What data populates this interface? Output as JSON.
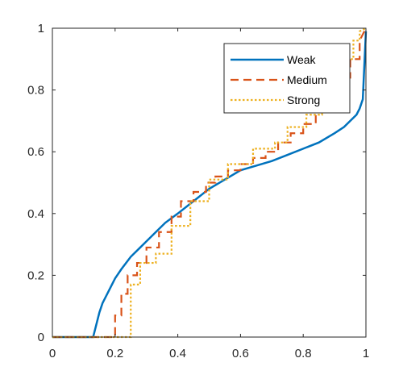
{
  "chart_data": {
    "type": "line",
    "xlim": [
      0,
      1
    ],
    "ylim": [
      0,
      1
    ],
    "xticks": [
      "0",
      "0.2",
      "0.4",
      "0.6",
      "0.8",
      "1"
    ],
    "yticks": [
      "0",
      "0.2",
      "0.4",
      "0.6",
      "0.8",
      "1"
    ],
    "grid": false,
    "legend_position": "top-right",
    "series": [
      {
        "name": "Weak",
        "style": "solid",
        "color": "#0072BD",
        "x": [
          0,
          0.13,
          0.14,
          0.15,
          0.16,
          0.18,
          0.2,
          0.22,
          0.25,
          0.28,
          0.3,
          0.33,
          0.36,
          0.4,
          0.45,
          0.5,
          0.55,
          0.6,
          0.65,
          0.7,
          0.75,
          0.8,
          0.85,
          0.9,
          0.93,
          0.95,
          0.97,
          0.98,
          0.99,
          1.0
        ],
        "y": [
          0,
          0,
          0.04,
          0.08,
          0.11,
          0.15,
          0.19,
          0.22,
          0.26,
          0.29,
          0.31,
          0.34,
          0.37,
          0.4,
          0.44,
          0.48,
          0.51,
          0.54,
          0.555,
          0.57,
          0.59,
          0.61,
          0.63,
          0.66,
          0.68,
          0.7,
          0.72,
          0.74,
          0.77,
          0.99
        ]
      },
      {
        "name": "Medium",
        "style": "dashed",
        "color": "#D95319",
        "x": [
          0,
          0.2,
          0.2,
          0.22,
          0.22,
          0.24,
          0.24,
          0.27,
          0.27,
          0.3,
          0.3,
          0.34,
          0.34,
          0.38,
          0.38,
          0.41,
          0.41,
          0.45,
          0.45,
          0.49,
          0.49,
          0.52,
          0.52,
          0.56,
          0.56,
          0.6,
          0.6,
          0.64,
          0.64,
          0.68,
          0.68,
          0.72,
          0.72,
          0.76,
          0.76,
          0.8,
          0.8,
          0.84,
          0.84,
          0.88,
          0.88,
          0.92,
          0.92,
          0.95,
          0.95,
          0.98,
          0.98,
          1.0
        ],
        "y": [
          0,
          0,
          0.07,
          0.07,
          0.14,
          0.14,
          0.2,
          0.2,
          0.24,
          0.24,
          0.29,
          0.29,
          0.34,
          0.34,
          0.39,
          0.39,
          0.44,
          0.44,
          0.47,
          0.47,
          0.5,
          0.5,
          0.52,
          0.52,
          0.54,
          0.54,
          0.56,
          0.56,
          0.58,
          0.58,
          0.6,
          0.6,
          0.63,
          0.63,
          0.66,
          0.66,
          0.69,
          0.69,
          0.73,
          0.73,
          0.78,
          0.78,
          0.84,
          0.84,
          0.9,
          0.9,
          0.96,
          1.0
        ]
      },
      {
        "name": "Strong",
        "style": "dotted",
        "color": "#EDB120",
        "x": [
          0,
          0.25,
          0.25,
          0.28,
          0.28,
          0.33,
          0.33,
          0.38,
          0.38,
          0.44,
          0.44,
          0.5,
          0.5,
          0.56,
          0.56,
          0.64,
          0.64,
          0.71,
          0.71,
          0.75,
          0.75,
          0.81,
          0.81,
          0.86,
          0.86,
          0.9,
          0.9,
          0.93,
          0.93,
          0.96,
          0.96,
          0.98,
          0.98,
          1.0
        ],
        "y": [
          0,
          0,
          0.17,
          0.17,
          0.24,
          0.24,
          0.27,
          0.27,
          0.36,
          0.36,
          0.44,
          0.44,
          0.51,
          0.51,
          0.56,
          0.56,
          0.61,
          0.61,
          0.63,
          0.63,
          0.68,
          0.68,
          0.72,
          0.72,
          0.78,
          0.78,
          0.84,
          0.84,
          0.9,
          0.9,
          0.96,
          0.96,
          0.99,
          1.0
        ]
      }
    ]
  }
}
